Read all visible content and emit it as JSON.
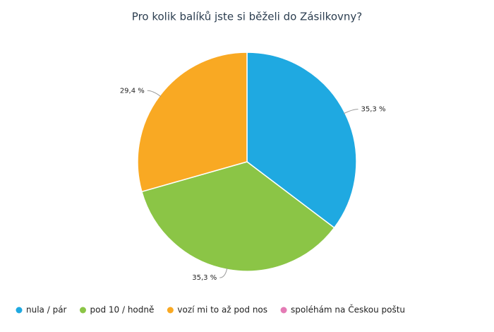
{
  "chart_data": {
    "type": "pie",
    "title": "Pro kolik balíků jste si běželi do Zásilkovny?",
    "categories": [
      "nula / pár",
      "pod 10 / hodně",
      "vozí mi to až pod nos",
      "spoléhám na Českou poštu"
    ],
    "values": [
      35.3,
      35.3,
      29.4,
      0
    ],
    "value_labels": [
      "35,3 %",
      "35,3 %",
      "29,4 %",
      null
    ],
    "colors": [
      "#1fa9e1",
      "#8bc546",
      "#f9a923",
      "#e47bb5"
    ],
    "legend": "bottom"
  }
}
